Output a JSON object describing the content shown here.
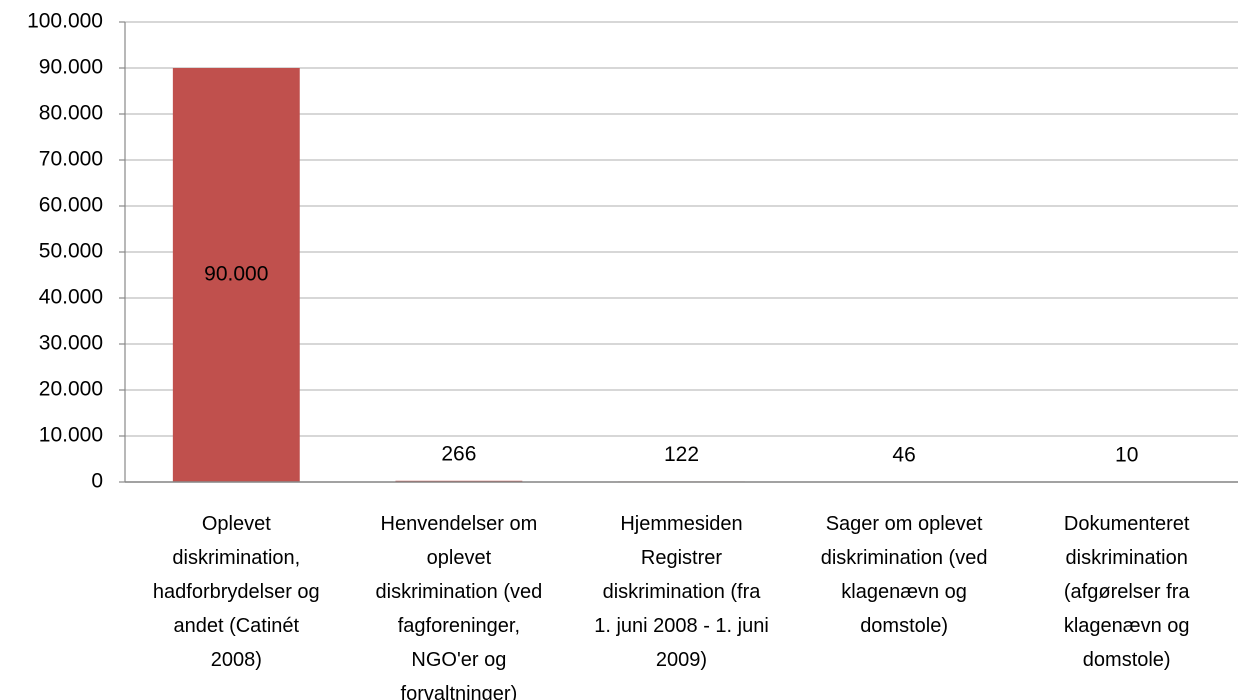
{
  "chart_data": {
    "type": "bar",
    "categories": [
      "Oplevet\ndiskrimination,\nhadforbrydelser og\nandet (Catinét\n2008)",
      "Henvendelser om\noplevet\ndiskrimination (ved\nfagforeninger,\nNGO'er og\nforvaltninger)",
      "Hjemmesiden\nRegistrer\ndiskrimination (fra\n1. juni 2008 - 1. juni\n2009)",
      "Sager om oplevet\ndiskrimination (ved\nklagenævn og\ndomstole)",
      "Dokumenteret\ndiskrimination\n(afgørelser fra\nklagenævn og\ndomstole)"
    ],
    "values": [
      90000,
      266,
      122,
      46,
      10
    ],
    "value_labels": [
      "90.000",
      "266",
      "122",
      "46",
      "10"
    ],
    "color": "#c0504d",
    "ylim": [
      0,
      100000
    ],
    "yticks": [
      0,
      {
        "value": 10000,
        "label": "10.000"
      },
      {
        "value": 20000,
        "label": "20.000"
      },
      {
        "value": 30000,
        "label": "30.000"
      },
      {
        "value": 40000,
        "label": "40.000"
      },
      {
        "value": 50000,
        "label": "50.000"
      },
      {
        "value": 60000,
        "label": "60.000"
      },
      {
        "value": 70000,
        "label": "70.000"
      },
      {
        "value": 80000,
        "label": "80.000"
      },
      {
        "value": 90000,
        "label": "90.000"
      },
      {
        "value": 100000,
        "label": "100.000"
      }
    ],
    "grid": true
  }
}
